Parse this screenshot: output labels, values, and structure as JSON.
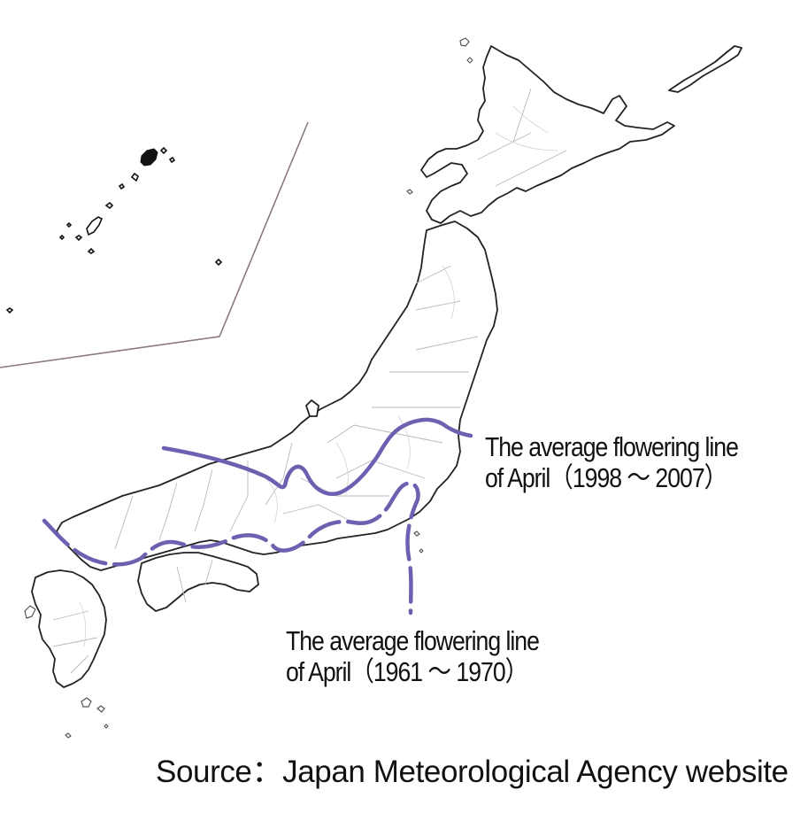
{
  "legend": {
    "recent_line": {
      "line1": "The average flowering line",
      "line2": "of April（1998 ～ 2007）"
    },
    "old_line": {
      "line1": "The average flowering line",
      "line2": "of April（1961 ～ 1970）"
    }
  },
  "source": "Source：Japan Meteorological Agency website",
  "colors": {
    "flowering_line": "#6f5fb0",
    "coastline": "#222222",
    "prefecture_border": "#b8b8c0",
    "inset_frame": "#8a7a78"
  },
  "line_styles": {
    "recent_line": "solid",
    "old_line": "dashed"
  }
}
